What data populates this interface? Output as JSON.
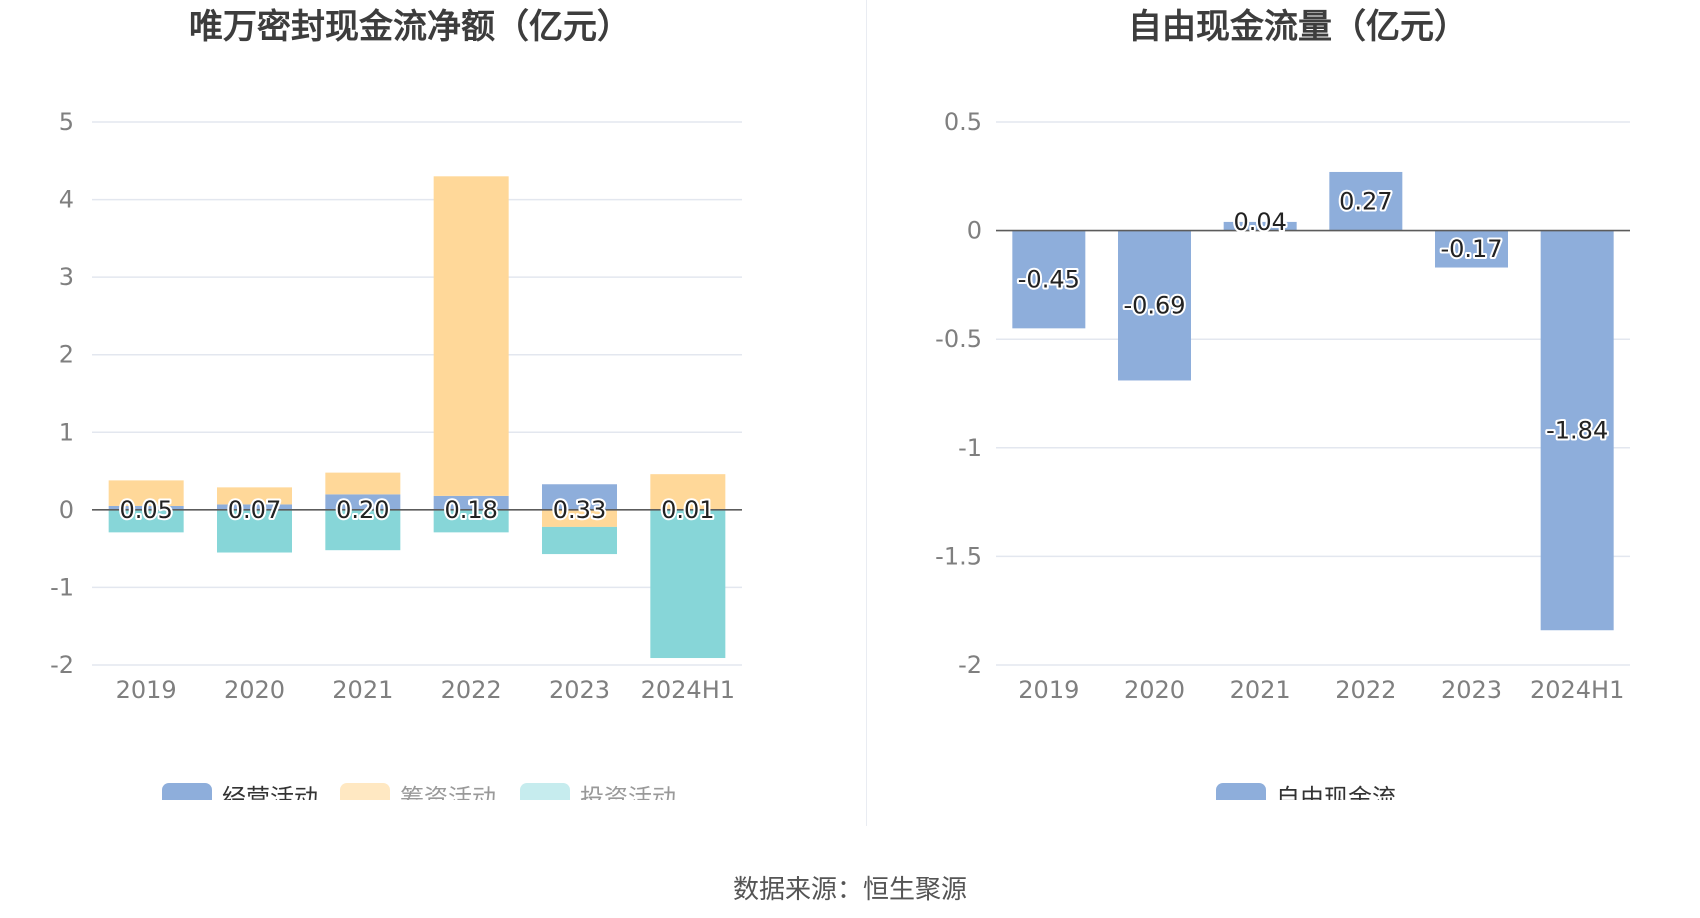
{
  "source": "数据来源：恒生聚源",
  "colors": {
    "operating": "#8eaedb",
    "financing": "#ffd899",
    "investing": "#87d6d8",
    "fcf": "#8eaedb",
    "financing_legend": "#ffe8c2",
    "investing_legend": "#c6ecee"
  },
  "chart_data": [
    {
      "type": "bar",
      "stacked": true,
      "title": "唯万密封现金流净额（亿元）",
      "categories": [
        "2019",
        "2020",
        "2021",
        "2022",
        "2023",
        "2024H1"
      ],
      "ylim": [
        -2,
        5
      ],
      "yticks": [
        "5",
        "4",
        "3",
        "2",
        "1",
        "0",
        "-1",
        "-2"
      ],
      "grid": true,
      "legend_position": "bottom",
      "series": [
        {
          "name": "经营活动",
          "values": [
            0.05,
            0.07,
            0.2,
            0.18,
            0.33,
            0.01
          ]
        },
        {
          "name": "筹资活动",
          "values": [
            0.33,
            0.22,
            0.28,
            4.12,
            -0.22,
            0.45
          ]
        },
        {
          "name": "投资活动",
          "values": [
            -0.29,
            -0.55,
            -0.52,
            -0.29,
            -0.35,
            -1.91
          ]
        }
      ],
      "data_labels": [
        "0.05",
        "0.07",
        "0.20",
        "0.18",
        "0.33",
        "0.01"
      ]
    },
    {
      "type": "bar",
      "title": "自由现金流量（亿元）",
      "categories": [
        "2019",
        "2020",
        "2021",
        "2022",
        "2023",
        "2024H1"
      ],
      "ylim": [
        -2,
        0.5
      ],
      "yticks": [
        "0.5",
        "0",
        "-0.5",
        "-1",
        "-1.5",
        "-2"
      ],
      "grid": true,
      "legend_position": "bottom",
      "series": [
        {
          "name": "自由现金流",
          "values": [
            -0.45,
            -0.69,
            0.04,
            0.27,
            -0.17,
            -1.84
          ]
        }
      ],
      "data_labels": [
        "-0.45",
        "-0.69",
        "0.04",
        "0.27",
        "-0.17",
        "-1.84"
      ]
    }
  ]
}
